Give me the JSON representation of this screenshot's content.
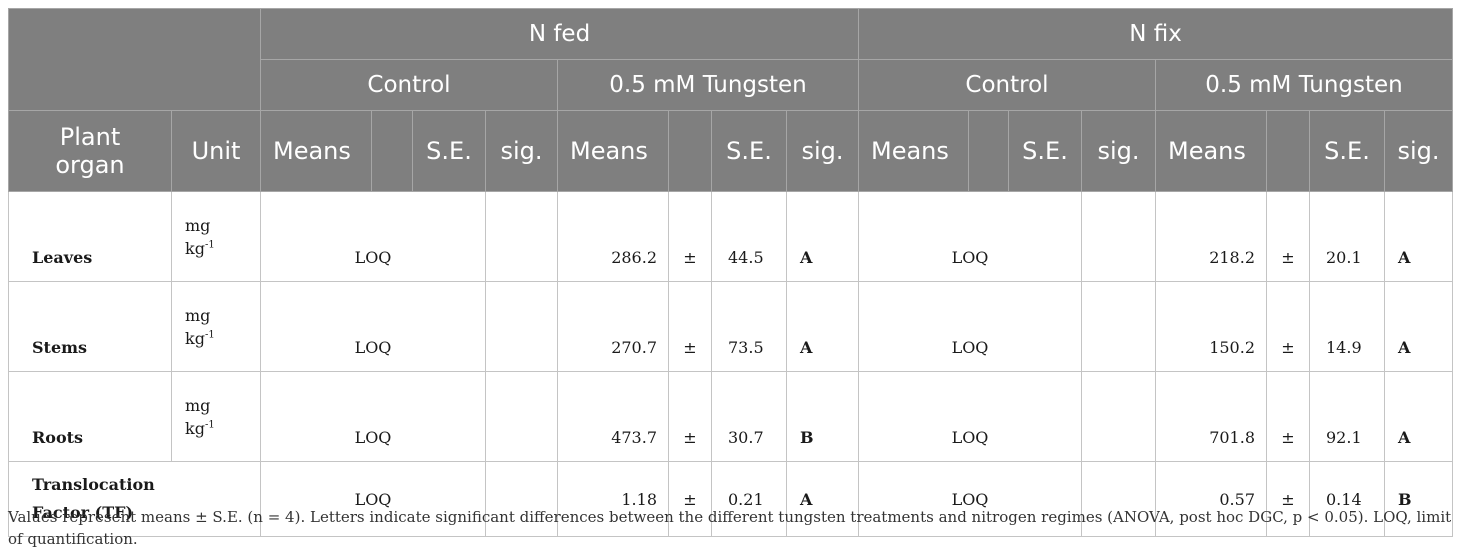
{
  "table": {
    "header": {
      "group_n_fed": "N fed",
      "group_n_fix": "N fix",
      "control": "Control",
      "tungsten": "0.5 mM Tungsten",
      "plant_organ_line1": "Plant",
      "plant_organ_line2": "organ",
      "unit": "Unit",
      "means": "Means",
      "se": "S.E.",
      "sig": "sig."
    },
    "unit_mg": "mg",
    "unit_kg": "kg",
    "unit_exp": "-1",
    "pm": "±",
    "rows": [
      {
        "organ": "Leaves",
        "fed_control": "LOQ",
        "fed_w_mean": "286.2",
        "fed_w_se": "44.5",
        "fed_w_sig": "A",
        "fix_control": "LOQ",
        "fix_w_mean": "218.2",
        "fix_w_se": "20.1",
        "fix_w_sig": "A"
      },
      {
        "organ": "Stems",
        "fed_control": "LOQ",
        "fed_w_mean": "270.7",
        "fed_w_se": "73.5",
        "fed_w_sig": "A",
        "fix_control": "LOQ",
        "fix_w_mean": "150.2",
        "fix_w_se": "14.9",
        "fix_w_sig": "A"
      },
      {
        "organ": "Roots",
        "fed_control": "LOQ",
        "fed_w_mean": "473.7",
        "fed_w_se": "30.7",
        "fed_w_sig": "B",
        "fix_control": "LOQ",
        "fix_w_mean": "701.8",
        "fix_w_se": "92.1",
        "fix_w_sig": "A"
      },
      {
        "organ_line1": "Translocation",
        "organ_line2": "Factor (TF)",
        "fed_control": "LOQ",
        "fed_w_mean": "1.18",
        "fed_w_se": "0.21",
        "fed_w_sig": "A",
        "fix_control": "LOQ",
        "fix_w_mean": "0.57",
        "fix_w_se": "0.14",
        "fix_w_sig": "B"
      }
    ]
  },
  "footnote": "Values represent means ± S.E. (n = 4). Letters indicate significant differences between the different tungsten treatments and nitrogen regimes (ANOVA, post hoc DGC, p < 0.05). LOQ, limit of quantification."
}
